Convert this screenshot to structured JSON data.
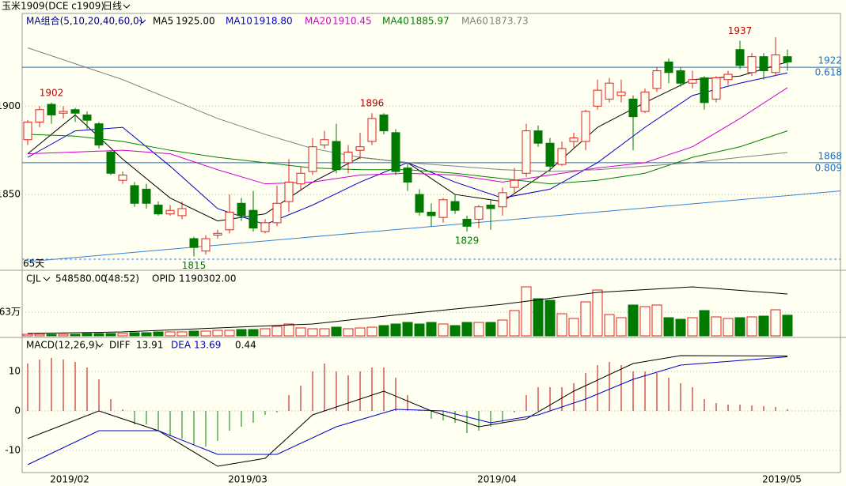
{
  "chart_data": [
    {
      "type": "candlestick",
      "title": "玉米1909(DCE c1909)",
      "period": "日线",
      "indicator": "MA组合(5,10,20,40,60,0)",
      "span_label": "65天",
      "up_color": "#e0201c",
      "down_color": "#007a00",
      "categories": [
        null,
        null,
        null,
        null,
        "2019/02",
        null,
        null,
        null,
        null,
        null,
        null,
        null,
        null,
        null,
        null,
        null,
        null,
        null,
        null,
        "2019/03",
        null,
        null,
        null,
        null,
        null,
        null,
        null,
        null,
        null,
        null,
        null,
        null,
        null,
        null,
        null,
        null,
        null,
        null,
        null,
        null,
        "2019/04",
        null,
        null,
        null,
        null,
        null,
        null,
        null,
        null,
        null,
        null,
        null,
        null,
        null,
        null,
        null,
        null,
        null,
        null,
        null,
        null,
        null,
        null,
        null,
        "2019/05"
      ],
      "open": [
        1881,
        1891,
        1901,
        1896,
        1898,
        1895,
        1890,
        1874,
        1858,
        1855,
        1853,
        1844,
        1839,
        1838,
        1825,
        1818,
        1827,
        1830,
        1845,
        1841,
        1829,
        1834,
        1846,
        1856,
        1863,
        1878,
        1880,
        1868,
        1875,
        1880,
        1895,
        1885,
        1865,
        1850,
        1840,
        1837,
        1846,
        1836,
        1836,
        1844,
        1843,
        1854,
        1862,
        1886,
        1879,
        1867,
        1880,
        1880,
        1900,
        1904,
        1906,
        1904,
        1897,
        1910,
        1925,
        1920,
        1913,
        1916,
        1904,
        1915,
        1932,
        1919,
        1928,
        1919,
        1928
      ],
      "high": [
        1892,
        1900,
        1902,
        1900,
        1899,
        1897,
        1891,
        1875,
        1863,
        1857,
        1856,
        1846,
        1844,
        1846,
        1826,
        1827,
        1830,
        1850,
        1848,
        1852,
        1836,
        1855,
        1870,
        1866,
        1882,
        1886,
        1890,
        1878,
        1885,
        1896,
        1896,
        1887,
        1868,
        1853,
        1845,
        1848,
        1850,
        1838,
        1844,
        1847,
        1854,
        1865,
        1890,
        1889,
        1882,
        1880,
        1885,
        1898,
        1915,
        1916,
        1915,
        1906,
        1910,
        1922,
        1927,
        1922,
        1920,
        1917,
        1917,
        1920,
        1937,
        1930,
        1930,
        1939,
        1932
      ],
      "low": [
        1878,
        1888,
        1890,
        1893,
        1891,
        1887,
        1876,
        1861,
        1856,
        1843,
        1842,
        1838,
        1838,
        1836,
        1815,
        1816,
        1825,
        1828,
        1835,
        1829,
        1828,
        1832,
        1840,
        1852,
        1861,
        1876,
        1862,
        1862,
        1870,
        1878,
        1884,
        1861,
        1852,
        1838,
        1832,
        1834,
        1839,
        1829,
        1831,
        1830,
        1838,
        1850,
        1860,
        1877,
        1863,
        1866,
        1876,
        1875,
        1898,
        1902,
        1902,
        1875,
        1896,
        1908,
        1913,
        1911,
        1910,
        1898,
        1902,
        1912,
        1921,
        1917,
        1915,
        1917,
        1920
      ],
      "close": [
        1891,
        1898,
        1895,
        1897,
        1896,
        1892,
        1878,
        1862,
        1861,
        1845,
        1845,
        1839,
        1841,
        1842,
        1820,
        1825,
        1828,
        1840,
        1838,
        1831,
        1834,
        1845,
        1857,
        1862,
        1877,
        1881,
        1864,
        1874,
        1877,
        1893,
        1886,
        1863,
        1857,
        1840,
        1838,
        1847,
        1841,
        1832,
        1843,
        1842,
        1851,
        1858,
        1886,
        1879,
        1866,
        1876,
        1882,
        1897,
        1909,
        1913,
        1908,
        1894,
        1908,
        1920,
        1919,
        1913,
        1915,
        1902,
        1916,
        1918,
        1923,
        1928,
        1920,
        1929,
        1925
      ],
      "ylim": [
        1808,
        1952
      ],
      "yticks": [
        1850,
        1900
      ],
      "grid": true,
      "series": [
        {
          "name": "MA5",
          "color": "#000000",
          "legend_value": {
            "value": 1925,
            "label": "1925.00"
          },
          "x": [
            0,
            4,
            8,
            12,
            16,
            20,
            24,
            28,
            32,
            36,
            40,
            44,
            48,
            52,
            56,
            60,
            64
          ],
          "values": [
            1873,
            1895,
            1870,
            1848,
            1835,
            1839,
            1857,
            1871,
            1868,
            1850,
            1846,
            1864,
            1888,
            1902,
            1915,
            1917,
            1925
          ]
        },
        {
          "name": "MA10",
          "color": "#0000c8",
          "legend_value": {
            "value": 1918.8,
            "label": "1918.80"
          },
          "x": [
            0,
            4,
            8,
            12,
            16,
            20,
            24,
            28,
            32,
            36,
            40,
            44,
            48,
            52,
            56,
            60,
            64
          ],
          "values": [
            1871,
            1886,
            1888,
            1866,
            1842,
            1833,
            1844,
            1857,
            1868,
            1857,
            1848,
            1853,
            1868,
            1888,
            1906,
            1913,
            1918.8
          ]
        },
        {
          "name": "MA20",
          "color": "#d000d0",
          "legend_value": {
            "value": 1910.45,
            "label": "1910.45"
          },
          "x": [
            0,
            4,
            8,
            12,
            16,
            20,
            24,
            28,
            32,
            36,
            40,
            44,
            48,
            52,
            56,
            60,
            64
          ],
          "values": [
            1873,
            1874,
            1875,
            1873,
            1864,
            1856,
            1857,
            1861,
            1862,
            1861,
            1857,
            1861,
            1865,
            1868,
            1877,
            1893,
            1910.45
          ]
        },
        {
          "name": "MA40",
          "color": "#008000",
          "legend_value": {
            "value": 1885.97,
            "label": "1885.97"
          },
          "x": [
            0,
            4,
            8,
            12,
            16,
            20,
            24,
            28,
            32,
            36,
            40,
            44,
            48,
            52,
            56,
            60,
            64
          ],
          "values": [
            1884,
            1883,
            1880,
            1875,
            1871,
            1868,
            1865,
            1864,
            1864,
            1862,
            1859,
            1856,
            1858,
            1862,
            1871,
            1877,
            1885.97
          ]
        },
        {
          "name": "MA60",
          "color": "#808080",
          "legend_value": {
            "value": 1873.73,
            "label": "1873.73"
          },
          "x": [
            0,
            4,
            8,
            12,
            16,
            20,
            24,
            28,
            32,
            36,
            40,
            44,
            48,
            52,
            56,
            60,
            64
          ],
          "values": [
            1933,
            1924,
            1915,
            1904,
            1893,
            1884,
            1876,
            1871,
            1868,
            1866,
            1864,
            1863,
            1864,
            1866,
            1868,
            1871,
            1873.73
          ]
        }
      ],
      "levels": [
        {
          "value": 1922,
          "ratio": 0.618
        },
        {
          "value": 1868,
          "ratio": 0.809
        }
      ],
      "level_color": "#1f6fc0",
      "trendline": {
        "color": "#3a7fd0",
        "x": [
          0,
          68.5
        ],
        "values": [
          1812,
          1852
        ]
      }
    },
    {
      "type": "bar",
      "indicator": "CJL",
      "last": {
        "value": 548580,
        "label": "548580.00"
      },
      "ratio_label": "(48:52)",
      "open_interest_name": "OPID",
      "open_interest": {
        "value": 1190302,
        "label": "1190302.00"
      },
      "values": [
        42000,
        42000,
        42000,
        42000,
        42000,
        63000,
        63000,
        63000,
        63000,
        84000,
        84000,
        105000,
        105000,
        105000,
        126000,
        126000,
        147000,
        147000,
        168000,
        168000,
        189000,
        252000,
        315000,
        210000,
        189000,
        189000,
        231000,
        189000,
        210000,
        231000,
        273000,
        315000,
        357000,
        315000,
        357000,
        315000,
        273000,
        357000,
        357000,
        357000,
        420000,
        672000,
        1302000,
        987000,
        945000,
        588000,
        462000,
        903000,
        1218000,
        567000,
        483000,
        819000,
        777000,
        819000,
        483000,
        441000,
        483000,
        672000,
        504000,
        462000,
        483000,
        504000,
        525000,
        693000,
        548580
      ],
      "ylim": [
        0,
        1680000
      ],
      "yticks": [
        {
          "value": 630000,
          "label": "63万"
        }
      ],
      "grid": true,
      "series": [
        {
          "color": "#000000",
          "x": [
            0,
            8,
            16,
            24,
            32,
            40,
            48,
            56,
            64
          ],
          "values": [
            63000,
            105000,
            210000,
            315000,
            588000,
            840000,
            1155000,
            1302000,
            1113000
          ]
        }
      ]
    },
    {
      "type": "macd",
      "indicator": "MACD(12,26,9)",
      "up_color": "#c00000",
      "down_color": "#008000",
      "values": [
        12,
        13,
        13.4,
        13,
        12.4,
        11,
        8,
        3,
        0.4,
        -3.4,
        -3.4,
        -5,
        -6.4,
        -7,
        -8.6,
        -9,
        -7.6,
        -5,
        -4,
        -3,
        -1,
        -0.4,
        4,
        6.4,
        10,
        12,
        10,
        9,
        10,
        11,
        11,
        8.4,
        4,
        0.2,
        -2,
        -2.4,
        -3,
        -5.6,
        -5,
        -4,
        -3,
        -0.4,
        4,
        6,
        6,
        6,
        7,
        9.6,
        11.6,
        12.4,
        11.6,
        10,
        10,
        9.6,
        8.4,
        7,
        6,
        3,
        2,
        1.6,
        1.6,
        1.4,
        1.2,
        1,
        0.44
      ],
      "ylim": [
        -15.6,
        18.4
      ],
      "yticks": [
        10,
        0,
        -10
      ],
      "grid": true,
      "series": [
        {
          "name": "DIFF",
          "color": "#000000",
          "x": [
            0,
            6,
            11,
            16,
            20,
            24,
            30,
            34,
            38,
            42,
            46,
            51,
            55,
            64
          ],
          "values": [
            -7,
            0,
            -5,
            -14,
            -12,
            -1,
            5,
            0,
            -4,
            -2,
            5,
            12,
            14,
            13.91
          ]
        },
        {
          "name": "DEA",
          "color": "#0000c8",
          "x": [
            0,
            6,
            11,
            16,
            21,
            26,
            31,
            35,
            39,
            43,
            47,
            51,
            55,
            64
          ],
          "values": [
            -13.6,
            -5,
            -5,
            -11,
            -11,
            -4,
            0.4,
            0,
            -3,
            -1,
            3,
            8,
            11.6,
            13.69
          ]
        }
      ]
    }
  ]
}
